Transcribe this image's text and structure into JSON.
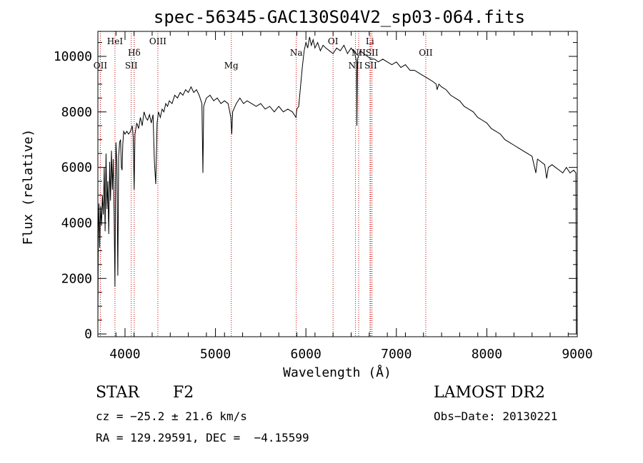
{
  "chart_data": {
    "type": "line",
    "title": "spec-56345-GAC130S04V2_sp03-064.fits",
    "xlabel": "Wavelength (Å)",
    "ylabel": "Flux (relative)",
    "xlim": [
      3700,
      9000
    ],
    "ylim": [
      -100,
      10900
    ],
    "x_ticks": [
      4000,
      5000,
      6000,
      7000,
      8000,
      9000
    ],
    "y_ticks": [
      0,
      2000,
      4000,
      6000,
      8000,
      10000
    ],
    "grid": false,
    "series": [
      {
        "color": "#000000",
        "points": [
          [
            3700,
            400
          ],
          [
            3705,
            3600
          ],
          [
            3712,
            4700
          ],
          [
            3720,
            3100
          ],
          [
            3730,
            4600
          ],
          [
            3740,
            3900
          ],
          [
            3750,
            5000
          ],
          [
            3760,
            4300
          ],
          [
            3770,
            6000
          ],
          [
            3780,
            3700
          ],
          [
            3790,
            6500
          ],
          [
            3800,
            4500
          ],
          [
            3810,
            5500
          ],
          [
            3820,
            3600
          ],
          [
            3830,
            6200
          ],
          [
            3840,
            4800
          ],
          [
            3850,
            6600
          ],
          [
            3860,
            5200
          ],
          [
            3870,
            6300
          ],
          [
            3880,
            4200
          ],
          [
            3889,
            1700
          ],
          [
            3895,
            5500
          ],
          [
            3900,
            6900
          ],
          [
            3910,
            6100
          ],
          [
            3920,
            2100
          ],
          [
            3930,
            6400
          ],
          [
            3940,
            6900
          ],
          [
            3950,
            7000
          ],
          [
            3960,
            6000
          ],
          [
            3968,
            5900
          ],
          [
            3975,
            6800
          ],
          [
            3985,
            7300
          ],
          [
            4000,
            7200
          ],
          [
            4020,
            7300
          ],
          [
            4040,
            7200
          ],
          [
            4060,
            7300
          ],
          [
            4080,
            7500
          ],
          [
            4090,
            7100
          ],
          [
            4101,
            5200
          ],
          [
            4110,
            7200
          ],
          [
            4130,
            7600
          ],
          [
            4150,
            7400
          ],
          [
            4170,
            7800
          ],
          [
            4190,
            7500
          ],
          [
            4210,
            8000
          ],
          [
            4230,
            7800
          ],
          [
            4250,
            7700
          ],
          [
            4270,
            7900
          ],
          [
            4290,
            7600
          ],
          [
            4310,
            7900
          ],
          [
            4325,
            6200
          ],
          [
            4340,
            5400
          ],
          [
            4355,
            7600
          ],
          [
            4370,
            8000
          ],
          [
            4390,
            7800
          ],
          [
            4410,
            8100
          ],
          [
            4430,
            8000
          ],
          [
            4450,
            8300
          ],
          [
            4470,
            8200
          ],
          [
            4490,
            8400
          ],
          [
            4520,
            8300
          ],
          [
            4550,
            8600
          ],
          [
            4580,
            8500
          ],
          [
            4610,
            8700
          ],
          [
            4640,
            8600
          ],
          [
            4670,
            8800
          ],
          [
            4700,
            8700
          ],
          [
            4730,
            8900
          ],
          [
            4760,
            8700
          ],
          [
            4790,
            8800
          ],
          [
            4820,
            8600
          ],
          [
            4850,
            8300
          ],
          [
            4861,
            5800
          ],
          [
            4870,
            8200
          ],
          [
            4900,
            8500
          ],
          [
            4940,
            8600
          ],
          [
            4980,
            8400
          ],
          [
            5020,
            8500
          ],
          [
            5060,
            8300
          ],
          [
            5100,
            8400
          ],
          [
            5140,
            8300
          ],
          [
            5170,
            7800
          ],
          [
            5180,
            7200
          ],
          [
            5190,
            8000
          ],
          [
            5230,
            8300
          ],
          [
            5270,
            8500
          ],
          [
            5310,
            8300
          ],
          [
            5350,
            8400
          ],
          [
            5400,
            8300
          ],
          [
            5450,
            8200
          ],
          [
            5500,
            8300
          ],
          [
            5550,
            8100
          ],
          [
            5600,
            8200
          ],
          [
            5650,
            8000
          ],
          [
            5700,
            8200
          ],
          [
            5750,
            8000
          ],
          [
            5800,
            8100
          ],
          [
            5850,
            8000
          ],
          [
            5890,
            7800
          ],
          [
            5900,
            8100
          ],
          [
            5920,
            8200
          ],
          [
            5940,
            8900
          ],
          [
            5960,
            9600
          ],
          [
            5980,
            10200
          ],
          [
            6000,
            10500
          ],
          [
            6020,
            10300
          ],
          [
            6040,
            10700
          ],
          [
            6060,
            10400
          ],
          [
            6080,
            10600
          ],
          [
            6100,
            10300
          ],
          [
            6130,
            10500
          ],
          [
            6160,
            10200
          ],
          [
            6190,
            10400
          ],
          [
            6220,
            10300
          ],
          [
            6260,
            10200
          ],
          [
            6300,
            10100
          ],
          [
            6340,
            10300
          ],
          [
            6380,
            10200
          ],
          [
            6420,
            10400
          ],
          [
            6460,
            10100
          ],
          [
            6500,
            10300
          ],
          [
            6540,
            10100
          ],
          [
            6560,
            9800
          ],
          [
            6563,
            7500
          ],
          [
            6570,
            9900
          ],
          [
            6600,
            10200
          ],
          [
            6640,
            10100
          ],
          [
            6680,
            10000
          ],
          [
            6720,
            9900
          ],
          [
            6760,
            9900
          ],
          [
            6800,
            9800
          ],
          [
            6850,
            9900
          ],
          [
            6900,
            9800
          ],
          [
            6950,
            9700
          ],
          [
            7000,
            9800
          ],
          [
            7050,
            9600
          ],
          [
            7100,
            9700
          ],
          [
            7150,
            9500
          ],
          [
            7200,
            9500
          ],
          [
            7250,
            9400
          ],
          [
            7300,
            9300
          ],
          [
            7350,
            9200
          ],
          [
            7400,
            9100
          ],
          [
            7440,
            9000
          ],
          [
            7450,
            8800
          ],
          [
            7470,
            9000
          ],
          [
            7500,
            8900
          ],
          [
            7550,
            8800
          ],
          [
            7600,
            8600
          ],
          [
            7650,
            8500
          ],
          [
            7700,
            8400
          ],
          [
            7750,
            8200
          ],
          [
            7800,
            8100
          ],
          [
            7850,
            8000
          ],
          [
            7900,
            7800
          ],
          [
            7950,
            7700
          ],
          [
            8000,
            7600
          ],
          [
            8050,
            7400
          ],
          [
            8100,
            7300
          ],
          [
            8150,
            7200
          ],
          [
            8200,
            7000
          ],
          [
            8250,
            6900
          ],
          [
            8300,
            6800
          ],
          [
            8350,
            6700
          ],
          [
            8400,
            6600
          ],
          [
            8450,
            6500
          ],
          [
            8500,
            6400
          ],
          [
            8542,
            5800
          ],
          [
            8560,
            6300
          ],
          [
            8600,
            6200
          ],
          [
            8640,
            6100
          ],
          [
            8662,
            5600
          ],
          [
            8680,
            6000
          ],
          [
            8720,
            6100
          ],
          [
            8760,
            6000
          ],
          [
            8800,
            5900
          ],
          [
            8840,
            5800
          ],
          [
            8880,
            6000
          ],
          [
            8920,
            5800
          ],
          [
            8960,
            5900
          ],
          [
            8985,
            5800
          ],
          [
            8990,
            0
          ]
        ]
      }
    ],
    "lines": [
      {
        "label": "OII",
        "x": 3727,
        "row": 3
      },
      {
        "label": "HeI",
        "x": 3889,
        "row": 1
      },
      {
        "label": "SII",
        "x": 4069,
        "row": 3
      },
      {
        "label": "Hδ",
        "x": 4102,
        "row": 2
      },
      {
        "label": "OIII",
        "x": 4363,
        "row": 1
      },
      {
        "label": "Mg",
        "x": 5175,
        "row": 3
      },
      {
        "label": "Na",
        "x": 5893,
        "row": 2
      },
      {
        "label": "OI",
        "x": 6300,
        "row": 1
      },
      {
        "label": "NII",
        "x": 6548,
        "row": 3
      },
      {
        "label": "NII",
        "x": 6583,
        "row": 2
      },
      {
        "label": "Li",
        "x": 6708,
        "row": 1
      },
      {
        "label": "SII",
        "x": 6716,
        "row": 3
      },
      {
        "label": "SII",
        "x": 6731,
        "row": 2
      },
      {
        "label": "OII",
        "x": 7325,
        "row": 2
      }
    ],
    "line_color": "#cc0000"
  },
  "info": {
    "object_class": "STAR",
    "subclass": "F2",
    "survey": "LAMOST DR2",
    "redshift": "cz = −25.2 ± 21.6 km/s",
    "obs_date": "Obs−Date: 20130221",
    "coords": "RA = 129.29591, DEC =  −4.15599"
  }
}
